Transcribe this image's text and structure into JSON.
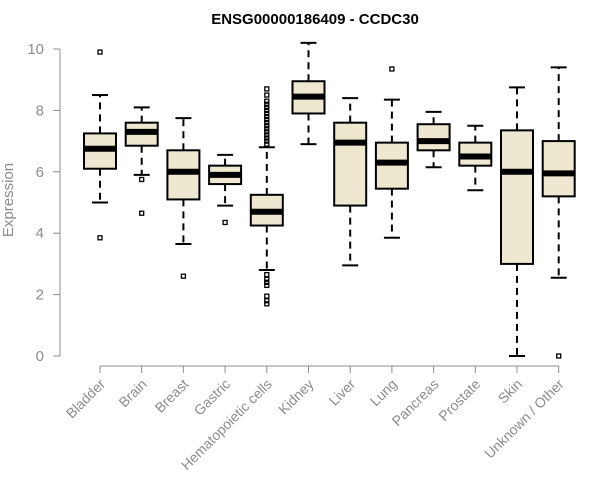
{
  "chart_data": {
    "type": "boxplot",
    "title": "ENSG00000186409 - CCDC30",
    "ylabel": "Expression",
    "xlabel": "",
    "ylim": [
      0,
      10.2
    ],
    "yticks": [
      0,
      2,
      4,
      6,
      8,
      10
    ],
    "box_fill": "#efe8d0",
    "grid": false,
    "categories": [
      "Bladder",
      "Brain",
      "Breast",
      "Gastric",
      "Hematopoietic cells",
      "Kidney",
      "Liver",
      "Lung",
      "Pancreas",
      "Prostate",
      "Skin",
      "Unknown / Other"
    ],
    "boxes": [
      {
        "whisker_low": 5.0,
        "q1": 6.1,
        "median": 6.75,
        "q3": 7.25,
        "whisker_high": 8.5,
        "outliers": [
          9.9,
          3.85
        ]
      },
      {
        "whisker_low": 5.9,
        "q1": 6.85,
        "median": 7.3,
        "q3": 7.6,
        "whisker_high": 8.1,
        "outliers": [
          5.75,
          4.65
        ]
      },
      {
        "whisker_low": 3.65,
        "q1": 5.1,
        "median": 6.0,
        "q3": 6.7,
        "whisker_high": 7.75,
        "outliers": [
          2.6
        ]
      },
      {
        "whisker_low": 4.9,
        "q1": 5.6,
        "median": 5.9,
        "q3": 6.2,
        "whisker_high": 6.55,
        "outliers": [
          4.35
        ]
      },
      {
        "whisker_low": 2.8,
        "q1": 4.25,
        "median": 4.7,
        "q3": 5.25,
        "whisker_high": 6.8,
        "outliers": [
          6.9,
          7.0,
          7.1,
          7.2,
          7.3,
          7.4,
          7.5,
          7.6,
          7.7,
          7.8,
          7.9,
          8.0,
          8.1,
          8.2,
          8.3,
          8.5,
          8.7,
          2.65,
          2.5,
          2.4,
          2.3,
          1.95,
          1.8,
          1.7
        ]
      },
      {
        "whisker_low": 6.9,
        "q1": 7.9,
        "median": 8.45,
        "q3": 8.95,
        "whisker_high": 10.2,
        "outliers": []
      },
      {
        "whisker_low": 2.95,
        "q1": 4.9,
        "median": 6.95,
        "q3": 7.6,
        "whisker_high": 8.4,
        "outliers": []
      },
      {
        "whisker_low": 3.85,
        "q1": 5.45,
        "median": 6.3,
        "q3": 6.95,
        "whisker_high": 8.35,
        "outliers": [
          9.35
        ]
      },
      {
        "whisker_low": 6.15,
        "q1": 6.7,
        "median": 7.0,
        "q3": 7.55,
        "whisker_high": 7.95,
        "outliers": []
      },
      {
        "whisker_low": 5.4,
        "q1": 6.2,
        "median": 6.5,
        "q3": 6.95,
        "whisker_high": 7.5,
        "outliers": []
      },
      {
        "whisker_low": 0.0,
        "q1": 3.0,
        "median": 6.0,
        "q3": 7.35,
        "whisker_high": 8.75,
        "outliers": []
      },
      {
        "whisker_low": 2.55,
        "q1": 5.2,
        "median": 5.95,
        "q3": 7.0,
        "whisker_high": 9.4,
        "outliers": [
          0.0
        ]
      }
    ]
  }
}
